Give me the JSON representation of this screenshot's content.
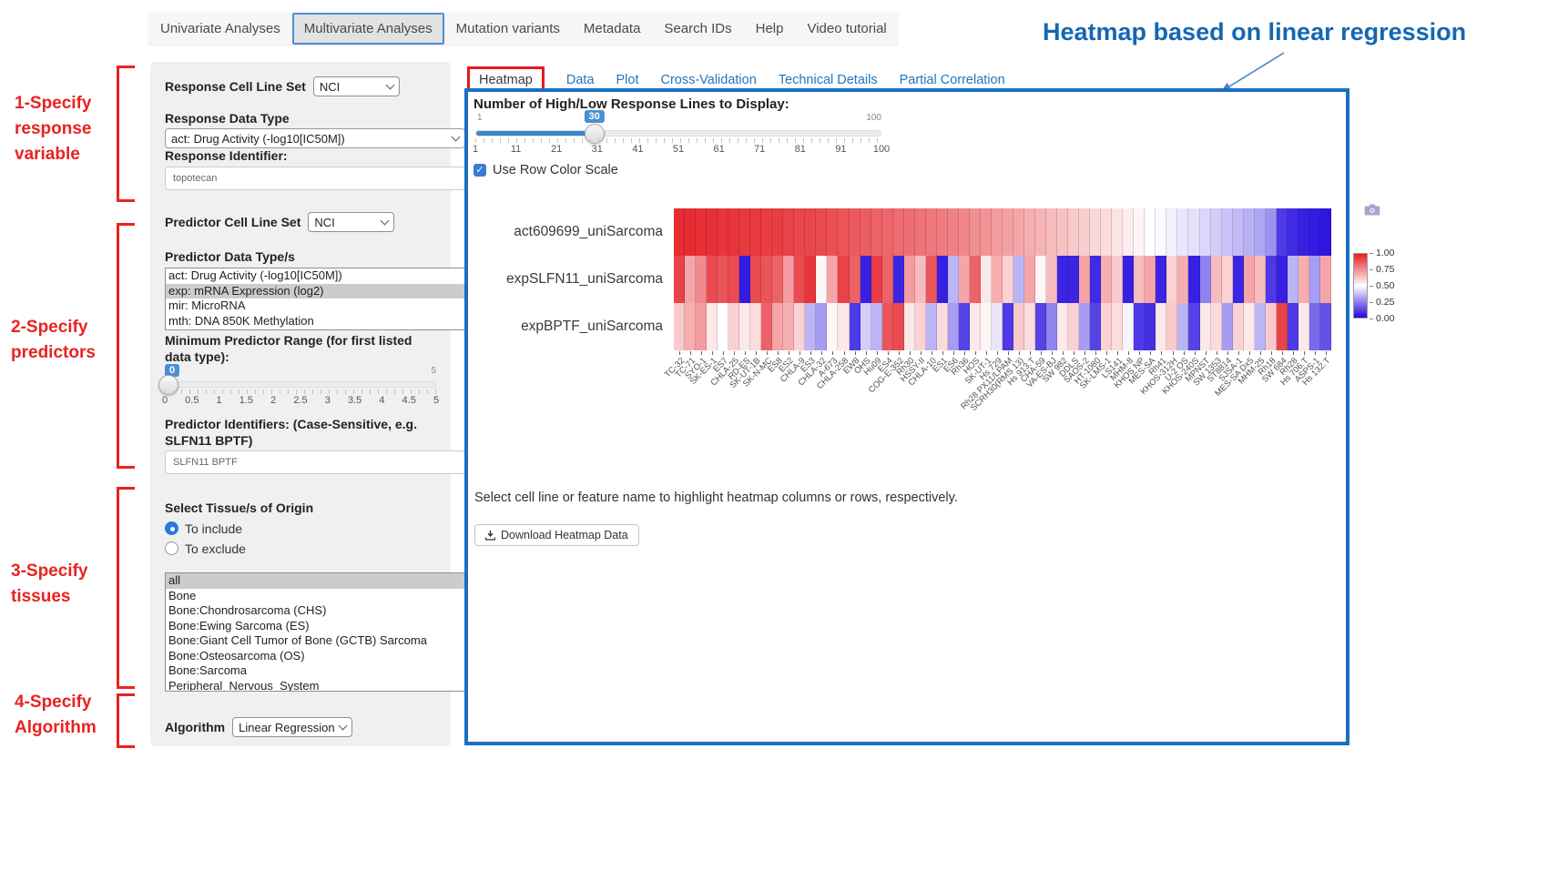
{
  "nav": {
    "items": [
      {
        "label": "Univariate Analyses",
        "active": false
      },
      {
        "label": "Multivariate Analyses",
        "active": true
      },
      {
        "label": "Mutation variants",
        "active": false
      },
      {
        "label": "Metadata",
        "active": false
      },
      {
        "label": "Search IDs",
        "active": false
      },
      {
        "label": "Help",
        "active": false
      },
      {
        "label": "Video tutorial",
        "active": false
      }
    ]
  },
  "annotations": {
    "title": "Heatmap based on linear regression",
    "steps": [
      {
        "lines": [
          "1-Specify",
          "response",
          "variable"
        ]
      },
      {
        "lines": [
          "2-Specify",
          "predictors"
        ]
      },
      {
        "lines": [
          "3-Specify",
          "tissues"
        ]
      },
      {
        "lines": [
          "4-Specify",
          "Algorithm"
        ]
      }
    ],
    "accent_red": "#e8231f",
    "accent_blue": "#1467b2"
  },
  "form": {
    "response_cell_line_set_label": "Response Cell Line Set",
    "response_cell_line_set_value": "NCI",
    "response_data_type_label": "Response Data Type",
    "response_data_type_value": "act: Drug Activity (-log10[IC50M])",
    "response_identifier_label": "Response Identifier:",
    "response_identifier_value": "topotecan",
    "predictor_cell_line_set_label": "Predictor Cell Line Set",
    "predictor_cell_line_set_value": "NCI",
    "predictor_data_types_label": "Predictor Data Type/s",
    "predictor_data_types_options": [
      {
        "label": "act: Drug Activity (-log10[IC50M])",
        "selected": false
      },
      {
        "label": "exp: mRNA Expression (log2)",
        "selected": true
      },
      {
        "label": "mir: MicroRNA",
        "selected": false
      },
      {
        "label": "mth: DNA 850K Methylation",
        "selected": false
      }
    ],
    "min_predictor_range_label": "Minimum Predictor Range (for first listed data type):",
    "min_range_slider": {
      "value": "0",
      "max_label": "5",
      "ticks": [
        "0",
        "0.5",
        "1",
        "1.5",
        "2",
        "2.5",
        "3",
        "3.5",
        "4",
        "4.5",
        "5"
      ]
    },
    "predictor_identifiers_label": "Predictor Identifiers: (Case-Sensitive, e.g. SLFN11 BPTF)",
    "predictor_identifiers_value": "SLFN11 BPTF",
    "tissue_label": "Select Tissue/s of Origin",
    "tissue_radios": [
      {
        "label": "To include",
        "selected": true
      },
      {
        "label": "To exclude",
        "selected": false
      }
    ],
    "tissue_options": [
      {
        "label": "all",
        "selected": true
      },
      {
        "label": "Bone",
        "selected": false
      },
      {
        "label": "Bone:Chondrosarcoma (CHS)",
        "selected": false
      },
      {
        "label": "Bone:Ewing Sarcoma (ES)",
        "selected": false
      },
      {
        "label": "Bone:Giant Cell Tumor of Bone (GCTB) Sarcoma",
        "selected": false
      },
      {
        "label": "Bone:Osteosarcoma (OS)",
        "selected": false
      },
      {
        "label": "Bone:Sarcoma",
        "selected": false
      },
      {
        "label": "Peripheral_Nervous_System",
        "selected": false
      }
    ],
    "algorithm_label": "Algorithm",
    "algorithm_value": "Linear Regression"
  },
  "main": {
    "tabs": [
      {
        "label": "Heatmap",
        "active": true
      },
      {
        "label": "Data",
        "active": false
      },
      {
        "label": "Plot",
        "active": false
      },
      {
        "label": "Cross-Validation",
        "active": false
      },
      {
        "label": "Technical Details",
        "active": false
      },
      {
        "label": "Partial Correlation",
        "active": false
      }
    ],
    "lines_slider_label": "Number of High/Low Response Lines to Display:",
    "lines_slider": {
      "value": "30",
      "min_label": "1",
      "max_label": "100",
      "ticks": [
        "1",
        "11",
        "21",
        "31",
        "41",
        "51",
        "61",
        "71",
        "81",
        "91",
        "100"
      ]
    },
    "row_color_scale_label": "Use Row Color Scale",
    "hint_text": "Select cell line or feature name to highlight heatmap columns or rows, respectively.",
    "download_button_label": "Download Heatmap Data"
  },
  "chart_data": {
    "type": "heatmap",
    "rows": [
      "act609699_uniSarcoma",
      "expSLFN11_uniSarcoma",
      "expBPTF_uniSarcoma"
    ],
    "columns": [
      "TC-32",
      "TC-71",
      "SYO-1",
      "SK-ES-1",
      "ES7",
      "CHLA-25",
      "RD-ES",
      "SK-UT-1B",
      "SK-N-MC",
      "ES8",
      "ES2",
      "CHLA-9",
      "ES3",
      "CHLA-32",
      "A-673",
      "CHLA-258",
      "EW8",
      "OHS",
      "Hu09",
      "ES4",
      "COG-E-352",
      "Rh30",
      "HSSY-II",
      "CHLA-10",
      "ES1",
      "ES6",
      "Rh36",
      "HOS",
      "SK-UT-1",
      "Hs 729",
      "Rh28 PX11/LPAM",
      "SCRH30(RMS 13)",
      "Hs 913.T",
      "CHA-59",
      "VA-ES-BJ",
      "SW 982",
      "DDLS",
      "SAOS-2",
      "HT-1080",
      "SK-LMS-1",
      "LS141",
      "MHM-8",
      "KHOS NP",
      "MES-SA",
      "Rh41",
      "KHOS-312H",
      "U-2 OS",
      "KHOS-240S",
      "MPNST",
      "SW 1353",
      "ST8814",
      "SJSA-1",
      "MES-SA Dx5",
      "MHM-25",
      "Rh18",
      "SW 684",
      "Rh28",
      "Hs 706.T",
      "ASPS-1",
      "Hs 132.T"
    ],
    "values": [
      [
        0.97,
        0.97,
        0.96,
        0.96,
        0.95,
        0.95,
        0.94,
        0.94,
        0.93,
        0.93,
        0.92,
        0.91,
        0.91,
        0.9,
        0.89,
        0.88,
        0.87,
        0.86,
        0.85,
        0.84,
        0.83,
        0.82,
        0.81,
        0.8,
        0.79,
        0.78,
        0.77,
        0.75,
        0.74,
        0.72,
        0.71,
        0.7,
        0.68,
        0.67,
        0.65,
        0.64,
        0.62,
        0.61,
        0.59,
        0.58,
        0.56,
        0.54,
        0.52,
        0.5,
        0.49,
        0.47,
        0.45,
        0.44,
        0.42,
        0.4,
        0.38,
        0.36,
        0.34,
        0.32,
        0.28,
        0.1,
        0.07,
        0.05,
        0.04,
        0.03
      ],
      [
        0.92,
        0.7,
        0.76,
        0.9,
        0.88,
        0.9,
        0.04,
        0.9,
        0.88,
        0.85,
        0.72,
        0.9,
        0.95,
        0.52,
        0.7,
        0.92,
        0.85,
        0.05,
        0.93,
        0.85,
        0.06,
        0.72,
        0.65,
        0.88,
        0.05,
        0.35,
        0.7,
        0.85,
        0.55,
        0.68,
        0.6,
        0.35,
        0.7,
        0.52,
        0.65,
        0.06,
        0.06,
        0.7,
        0.07,
        0.68,
        0.62,
        0.05,
        0.65,
        0.7,
        0.06,
        0.6,
        0.68,
        0.05,
        0.25,
        0.65,
        0.6,
        0.06,
        0.7,
        0.65,
        0.1,
        0.05,
        0.35,
        0.68,
        0.3,
        0.7
      ],
      [
        0.62,
        0.68,
        0.72,
        0.55,
        0.5,
        0.6,
        0.55,
        0.58,
        0.85,
        0.7,
        0.68,
        0.6,
        0.35,
        0.3,
        0.52,
        0.55,
        0.1,
        0.4,
        0.35,
        0.88,
        0.9,
        0.55,
        0.6,
        0.35,
        0.58,
        0.3,
        0.12,
        0.55,
        0.52,
        0.45,
        0.1,
        0.62,
        0.58,
        0.12,
        0.25,
        0.55,
        0.6,
        0.3,
        0.12,
        0.6,
        0.58,
        0.48,
        0.1,
        0.08,
        0.55,
        0.62,
        0.35,
        0.12,
        0.55,
        0.58,
        0.3,
        0.6,
        0.55,
        0.35,
        0.62,
        0.92,
        0.1,
        0.55,
        0.2,
        0.15
      ]
    ],
    "colorscale": {
      "min": 0,
      "max": 1,
      "ticks": [
        "1.00",
        "0.75",
        "0.50",
        "0.25",
        "0.00"
      ],
      "high_color": "#e51e25",
      "mid_color": "#ffffff",
      "low_color": "#2107de"
    },
    "legend_position": "right",
    "title": "",
    "xlabel": "",
    "ylabel": ""
  }
}
